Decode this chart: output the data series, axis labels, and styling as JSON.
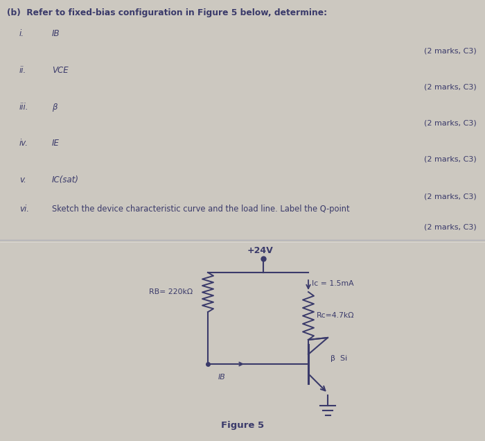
{
  "bg_color": "#ccc8c0",
  "title_text": "(b)  Refer to fixed-bias configuration in Figure 5 below, determine:",
  "items": [
    {
      "roman": "i.",
      "symbol": "IB",
      "marks": "(2 marks, C3)",
      "italic": true
    },
    {
      "roman": "ii.",
      "symbol": "VCE",
      "marks": "(2 marks, C3)",
      "italic": true
    },
    {
      "roman": "iii.",
      "symbol": "β",
      "marks": "(2 marks, C3)",
      "italic": true
    },
    {
      "roman": "iv.",
      "symbol": "IE",
      "marks": "(2 marks, C3)",
      "italic": true
    },
    {
      "roman": "v.",
      "symbol": "IC(sat)",
      "marks": "(2 marks, C3)",
      "italic": true
    },
    {
      "roman": "vi.",
      "symbol": "Sketch the device characteristic curve and the load line. Label the Q-point",
      "marks": "(2 marks, C3)",
      "italic": false
    }
  ],
  "text_color": "#3a3a6a",
  "marks_color": "#3a3a6a",
  "divider_color": "#b0b0b8",
  "circuit": {
    "vcc": "+24V",
    "ic_label": "Ic = 1.5mA",
    "rc_label": "Rc=4.7kΩ",
    "rb_label": "RB= 220kΩ",
    "ib_label": "IB",
    "transistor_label": "β  Si",
    "fig_caption": "Figure 5",
    "line_color": "#3a3a6a"
  }
}
